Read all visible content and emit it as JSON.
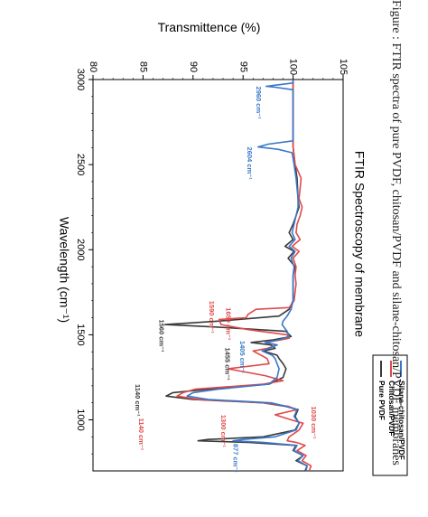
{
  "caption": "Figure : FTIR spectra of pure PVDF, chitosan/PVDF and silane-chitosan/PVDF membranes",
  "chart_data": {
    "type": "line",
    "title": "FTIR Spectroscopy of membrane",
    "xlabel": "Wavelength (cm⁻¹)",
    "ylabel": "Transmittence (%)",
    "xlim": [
      3000,
      700
    ],
    "ylim": [
      80,
      105
    ],
    "x_ticks": [
      "3000",
      "2500",
      "2000",
      "1500",
      "1000"
    ],
    "y_ticks": [
      "80",
      "85",
      "90",
      "95",
      "100",
      "105"
    ],
    "grid": false,
    "legend_position": "bottom-right",
    "series": [
      {
        "name": "Pure PVDF",
        "color": "#3a3a3a",
        "points": [
          [
            3000,
            100.0
          ],
          [
            2960,
            100.0
          ],
          [
            2900,
            100.0
          ],
          [
            2800,
            100.0
          ],
          [
            2700,
            100.0
          ],
          [
            2604,
            100.0
          ],
          [
            2500,
            100.2
          ],
          [
            2420,
            100.4
          ],
          [
            2300,
            100.5
          ],
          [
            2250,
            100.6
          ],
          [
            2200,
            100.3
          ],
          [
            2150,
            100.0
          ],
          [
            2100,
            99.6
          ],
          [
            2060,
            100.0
          ],
          [
            2020,
            99.2
          ],
          [
            1990,
            100.1
          ],
          [
            1950,
            99.5
          ],
          [
            1900,
            100.2
          ],
          [
            1850,
            100.0
          ],
          [
            1800,
            100.0
          ],
          [
            1750,
            100.0
          ],
          [
            1700,
            100.0
          ],
          [
            1650,
            99.6
          ],
          [
            1610,
            98.6
          ],
          [
            1580,
            92.5
          ],
          [
            1560,
            87.2
          ],
          [
            1545,
            92.5
          ],
          [
            1520,
            99.3
          ],
          [
            1490,
            99.8
          ],
          [
            1470,
            98.0
          ],
          [
            1455,
            95.8
          ],
          [
            1440,
            97.8
          ],
          [
            1420,
            98.2
          ],
          [
            1405,
            97.0
          ],
          [
            1380,
            98.4
          ],
          [
            1360,
            98.6
          ],
          [
            1330,
            99.0
          ],
          [
            1300,
            99.3
          ],
          [
            1250,
            99.0
          ],
          [
            1210,
            97.6
          ],
          [
            1180,
            91.5
          ],
          [
            1160,
            88.0
          ],
          [
            1140,
            87.3
          ],
          [
            1120,
            90.0
          ],
          [
            1100,
            97.0
          ],
          [
            1080,
            99.2
          ],
          [
            1060,
            100.5
          ],
          [
            1020,
            100.2
          ],
          [
            980,
            100.6
          ],
          [
            940,
            100.2
          ],
          [
            900,
            97.0
          ],
          [
            885,
            91.5
          ],
          [
            877,
            90.5
          ],
          [
            868,
            95.5
          ],
          [
            850,
            100.3
          ],
          [
            820,
            100.0
          ],
          [
            790,
            101.0
          ],
          [
            760,
            100.3
          ],
          [
            730,
            101.4
          ],
          [
            700,
            101.2
          ]
        ]
      },
      {
        "name": "Chitosan/PVDF",
        "color": "#e04a4a",
        "points": [
          [
            3000,
            100.0
          ],
          [
            2960,
            100.0
          ],
          [
            2900,
            100.0
          ],
          [
            2800,
            100.0
          ],
          [
            2700,
            100.0
          ],
          [
            2604,
            100.0
          ],
          [
            2500,
            100.2
          ],
          [
            2420,
            100.8
          ],
          [
            2300,
            100.6
          ],
          [
            2250,
            100.9
          ],
          [
            2200,
            100.7
          ],
          [
            2150,
            100.4
          ],
          [
            2100,
            100.3
          ],
          [
            2060,
            100.7
          ],
          [
            2020,
            99.9
          ],
          [
            1990,
            100.6
          ],
          [
            1950,
            100.0
          ],
          [
            1900,
            100.3
          ],
          [
            1850,
            100.2
          ],
          [
            1800,
            100.3
          ],
          [
            1750,
            100.2
          ],
          [
            1700,
            100.1
          ],
          [
            1660,
            99.6
          ],
          [
            1650,
            96.3
          ],
          [
            1620,
            95.5
          ],
          [
            1600,
            95.3
          ],
          [
            1590,
            92.6
          ],
          [
            1560,
            92.8
          ],
          [
            1530,
            95.5
          ],
          [
            1500,
            99.4
          ],
          [
            1480,
            99.6
          ],
          [
            1470,
            98.8
          ],
          [
            1455,
            97.2
          ],
          [
            1440,
            98.4
          ],
          [
            1420,
            97.4
          ],
          [
            1405,
            96.0
          ],
          [
            1380,
            96.8
          ],
          [
            1360,
            97.4
          ],
          [
            1330,
            97.6
          ],
          [
            1300,
            93.5
          ],
          [
            1260,
            97.2
          ],
          [
            1230,
            99.0
          ],
          [
            1210,
            97.0
          ],
          [
            1180,
            90.2
          ],
          [
            1160,
            89.0
          ],
          [
            1140,
            88.4
          ],
          [
            1120,
            90.5
          ],
          [
            1100,
            97.2
          ],
          [
            1080,
            99.5
          ],
          [
            1060,
            100.4
          ],
          [
            1030,
            98.2
          ],
          [
            1000,
            99.8
          ],
          [
            980,
            101.0
          ],
          [
            940,
            100.6
          ],
          [
            900,
            99.6
          ],
          [
            877,
            99.4
          ],
          [
            868,
            100.3
          ],
          [
            850,
            101.2
          ],
          [
            820,
            100.4
          ],
          [
            790,
            101.3
          ],
          [
            760,
            100.9
          ],
          [
            730,
            101.8
          ],
          [
            700,
            101.6
          ]
        ]
      },
      {
        "name": "Silane-chitosan/PVDF",
        "color": "#3a78c9",
        "points": [
          [
            3000,
            100.0
          ],
          [
            2980,
            100.0
          ],
          [
            2965,
            98.0
          ],
          [
            2960,
            97.3
          ],
          [
            2955,
            98.2
          ],
          [
            2940,
            100.0
          ],
          [
            2900,
            100.0
          ],
          [
            2800,
            100.0
          ],
          [
            2700,
            100.0
          ],
          [
            2640,
            100.0
          ],
          [
            2620,
            97.5
          ],
          [
            2604,
            96.5
          ],
          [
            2590,
            98.5
          ],
          [
            2570,
            99.9
          ],
          [
            2500,
            100.1
          ],
          [
            2420,
            100.3
          ],
          [
            2300,
            100.5
          ],
          [
            2250,
            100.5
          ],
          [
            2200,
            100.3
          ],
          [
            2150,
            100.1
          ],
          [
            2100,
            99.9
          ],
          [
            2060,
            100.2
          ],
          [
            2020,
            99.6
          ],
          [
            1990,
            100.2
          ],
          [
            1950,
            99.8
          ],
          [
            1900,
            100.1
          ],
          [
            1850,
            100.0
          ],
          [
            1800,
            100.0
          ],
          [
            1750,
            100.0
          ],
          [
            1700,
            100.0
          ],
          [
            1650,
            99.8
          ],
          [
            1610,
            99.4
          ],
          [
            1580,
            99.0
          ],
          [
            1560,
            98.9
          ],
          [
            1520,
            99.4
          ],
          [
            1490,
            99.6
          ],
          [
            1470,
            98.6
          ],
          [
            1455,
            97.2
          ],
          [
            1440,
            98.4
          ],
          [
            1420,
            97.6
          ],
          [
            1405,
            96.9
          ],
          [
            1380,
            97.9
          ],
          [
            1360,
            98.2
          ],
          [
            1330,
            98.4
          ],
          [
            1300,
            98.6
          ],
          [
            1250,
            98.4
          ],
          [
            1210,
            97.6
          ],
          [
            1180,
            92.5
          ],
          [
            1160,
            90.0
          ],
          [
            1140,
            89.4
          ],
          [
            1120,
            91.5
          ],
          [
            1100,
            97.8
          ],
          [
            1080,
            99.3
          ],
          [
            1060,
            100.4
          ],
          [
            1020,
            100.1
          ],
          [
            980,
            100.6
          ],
          [
            940,
            100.3
          ],
          [
            900,
            98.2
          ],
          [
            885,
            95.0
          ],
          [
            877,
            94.0
          ],
          [
            868,
            97.0
          ],
          [
            850,
            100.4
          ],
          [
            820,
            100.1
          ],
          [
            790,
            101.0
          ],
          [
            760,
            100.5
          ],
          [
            730,
            101.4
          ],
          [
            700,
            101.3
          ]
        ]
      }
    ],
    "annotations": [
      {
        "text": "2960 cm⁻¹",
        "x": 2960,
        "y": 96.5,
        "color": "#3a78c9"
      },
      {
        "text": "2604 cm⁻¹",
        "x": 2604,
        "y": 95.6,
        "color": "#3a78c9"
      },
      {
        "text": "1590 cm⁻¹",
        "x": 1700,
        "y": 91.8,
        "color": "#e04a4a"
      },
      {
        "text": "1650 cm⁻¹",
        "x": 1660,
        "y": 93.5,
        "color": "#e04a4a"
      },
      {
        "text": "1560 cm⁻¹",
        "x": 1590,
        "y": 86.8,
        "color": "#3a3a3a"
      },
      {
        "text": "1405 cm⁻¹",
        "x": 1465,
        "y": 94.9,
        "color": "#3a78c9"
      },
      {
        "text": "1455 cm⁻¹",
        "x": 1425,
        "y": 93.4,
        "color": "#3a3a3a"
      },
      {
        "text": "1030 cm⁻¹",
        "x": 1080,
        "y": 102.0,
        "color": "#e04a4a"
      },
      {
        "text": "1300 cm⁻¹",
        "x": 1030,
        "y": 93.0,
        "color": "#e04a4a"
      },
      {
        "text": "1140 cm⁻¹",
        "x": 1210,
        "y": 84.4,
        "color": "#3a3a3a"
      },
      {
        "text": "1140 cm⁻¹",
        "x": 1010,
        "y": 84.8,
        "color": "#e04a4a"
      },
      {
        "text": "877 cm⁻¹",
        "x": 860,
        "y": 94.2,
        "color": "#3a78c9"
      }
    ]
  }
}
